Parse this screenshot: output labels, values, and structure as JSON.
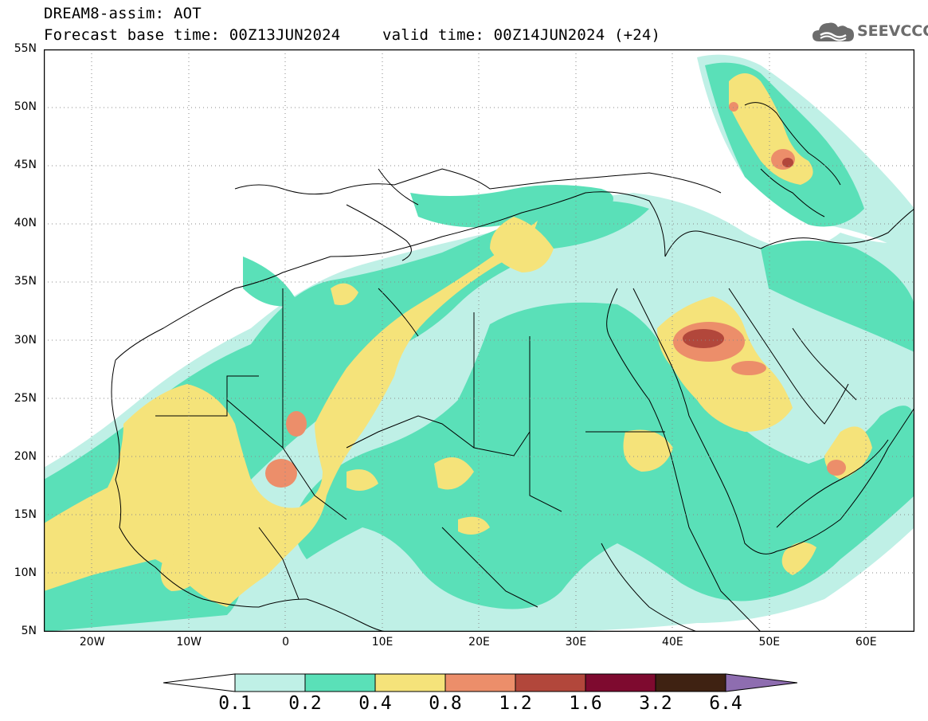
{
  "title": {
    "line1": "DREAM8-assim: AOT",
    "line2a": "Forecast base time: 00Z13JUN2024",
    "line2b": "valid time: 00Z14JUN2024 (+24)"
  },
  "logo": {
    "text": "SEEVCCC",
    "icon": "cloud-icon"
  },
  "axes": {
    "lat_labels": [
      "55N",
      "50N",
      "45N",
      "40N",
      "35N",
      "30N",
      "25N",
      "20N",
      "15N",
      "10N",
      "5N"
    ],
    "lon_labels": [
      "20W",
      "10W",
      "0",
      "10E",
      "20E",
      "30E",
      "40E",
      "50E",
      "60E"
    ],
    "lat_range": [
      5,
      55
    ],
    "lon_range": [
      -25,
      65
    ]
  },
  "colorbar": {
    "labels": [
      "0.1",
      "0.2",
      "0.4",
      "0.8",
      "1.2",
      "1.6",
      "3.2",
      "6.4"
    ],
    "colors": [
      "#ffffff",
      "#bff0e6",
      "#5ae0b8",
      "#f5e37a",
      "#ec8e6a",
      "#b2473b",
      "#7e0a2f",
      "#3f2212",
      "#8e6db0"
    ]
  }
}
